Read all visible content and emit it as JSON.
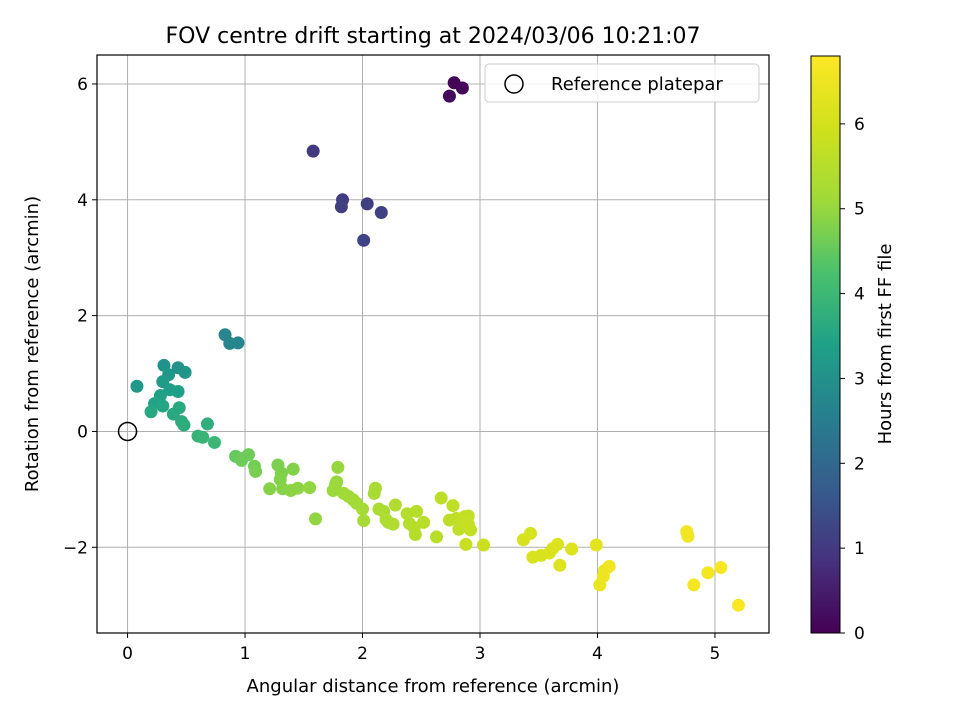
{
  "chart_data": {
    "type": "scatter",
    "title": "FOV centre drift starting at 2024/03/06 10:21:07",
    "xlabel": "Angular distance from reference (arcmin)",
    "ylabel": "Rotation from reference (arcmin)",
    "xlim": [
      -0.26,
      5.46
    ],
    "ylim": [
      -3.48,
      6.5
    ],
    "x_ticks": [
      0,
      1,
      2,
      3,
      4,
      5
    ],
    "y_ticks": [
      -2,
      0,
      2,
      4,
      6
    ],
    "grid": true,
    "legend": {
      "placement": "top-right",
      "entries": [
        "Reference platepar"
      ]
    },
    "reference_point": {
      "x": 0,
      "y": 0
    },
    "colorbar": {
      "label": "Hours from first FF file",
      "colormap": "viridis",
      "range": [
        0,
        6.8
      ],
      "ticks": [
        0,
        1,
        2,
        3,
        4,
        5,
        6
      ]
    },
    "series": [
      {
        "points": [
          {
            "x": 2.78,
            "y": 6.02,
            "c": 0.05
          },
          {
            "x": 2.85,
            "y": 5.93,
            "c": 0.1
          },
          {
            "x": 2.74,
            "y": 5.79,
            "c": 0.15
          },
          {
            "x": 1.58,
            "y": 4.84,
            "c": 1.0
          },
          {
            "x": 1.83,
            "y": 4.0,
            "c": 1.05
          },
          {
            "x": 1.82,
            "y": 3.88,
            "c": 1.1
          },
          {
            "x": 2.04,
            "y": 3.93,
            "c": 1.1
          },
          {
            "x": 2.16,
            "y": 3.78,
            "c": 1.15
          },
          {
            "x": 2.01,
            "y": 3.3,
            "c": 1.2
          },
          {
            "x": 0.83,
            "y": 1.67,
            "c": 2.7
          },
          {
            "x": 0.87,
            "y": 1.52,
            "c": 2.75
          },
          {
            "x": 0.94,
            "y": 1.53,
            "c": 2.75
          },
          {
            "x": 0.31,
            "y": 1.14,
            "c": 3.05
          },
          {
            "x": 0.43,
            "y": 1.1,
            "c": 3.05
          },
          {
            "x": 0.49,
            "y": 1.02,
            "c": 3.1
          },
          {
            "x": 0.35,
            "y": 0.98,
            "c": 3.15
          },
          {
            "x": 0.08,
            "y": 0.78,
            "c": 3.2
          },
          {
            "x": 0.3,
            "y": 0.86,
            "c": 3.25
          },
          {
            "x": 0.36,
            "y": 0.72,
            "c": 3.3
          },
          {
            "x": 0.43,
            "y": 0.69,
            "c": 3.35
          },
          {
            "x": 0.28,
            "y": 0.62,
            "c": 3.4
          },
          {
            "x": 0.23,
            "y": 0.48,
            "c": 3.45
          },
          {
            "x": 0.3,
            "y": 0.44,
            "c": 3.5
          },
          {
            "x": 0.2,
            "y": 0.34,
            "c": 3.55
          },
          {
            "x": 0.44,
            "y": 0.41,
            "c": 3.6
          },
          {
            "x": 0.39,
            "y": 0.3,
            "c": 3.6
          },
          {
            "x": 0.46,
            "y": 0.17,
            "c": 3.65
          },
          {
            "x": 0.48,
            "y": 0.11,
            "c": 3.7
          },
          {
            "x": 0.68,
            "y": 0.13,
            "c": 3.75
          },
          {
            "x": 0.6,
            "y": -0.08,
            "c": 3.85
          },
          {
            "x": 0.64,
            "y": -0.1,
            "c": 3.9
          },
          {
            "x": 0.74,
            "y": -0.19,
            "c": 3.95
          },
          {
            "x": 0.92,
            "y": -0.43,
            "c": 4.5
          },
          {
            "x": 0.97,
            "y": -0.47,
            "c": 4.55
          },
          {
            "x": 1.03,
            "y": -0.4,
            "c": 4.6
          },
          {
            "x": 0.97,
            "y": -0.5,
            "c": 4.6
          },
          {
            "x": 1.08,
            "y": -0.6,
            "c": 4.65
          },
          {
            "x": 1.09,
            "y": -0.69,
            "c": 4.7
          },
          {
            "x": 1.28,
            "y": -0.58,
            "c": 4.75
          },
          {
            "x": 1.31,
            "y": -0.72,
            "c": 4.75
          },
          {
            "x": 1.3,
            "y": -0.83,
            "c": 4.8
          },
          {
            "x": 1.41,
            "y": -0.65,
            "c": 4.8
          },
          {
            "x": 1.21,
            "y": -0.99,
            "c": 4.85
          },
          {
            "x": 1.32,
            "y": -0.99,
            "c": 4.85
          },
          {
            "x": 1.39,
            "y": -1.02,
            "c": 4.9
          },
          {
            "x": 1.45,
            "y": -0.98,
            "c": 4.9
          },
          {
            "x": 1.55,
            "y": -0.97,
            "c": 4.95
          },
          {
            "x": 1.6,
            "y": -1.51,
            "c": 4.95
          },
          {
            "x": 1.79,
            "y": -0.62,
            "c": 5.0
          },
          {
            "x": 1.78,
            "y": -0.87,
            "c": 5.0
          },
          {
            "x": 1.77,
            "y": -0.92,
            "c": 5.05
          },
          {
            "x": 1.75,
            "y": -1.02,
            "c": 5.05
          },
          {
            "x": 1.84,
            "y": -1.07,
            "c": 5.1
          },
          {
            "x": 1.88,
            "y": -1.12,
            "c": 5.1
          },
          {
            "x": 1.92,
            "y": -1.18,
            "c": 5.15
          },
          {
            "x": 1.95,
            "y": -1.24,
            "c": 5.15
          },
          {
            "x": 2.0,
            "y": -1.34,
            "c": 5.2
          },
          {
            "x": 2.01,
            "y": -1.54,
            "c": 5.2
          },
          {
            "x": 2.1,
            "y": -1.07,
            "c": 5.25
          },
          {
            "x": 2.11,
            "y": -0.98,
            "c": 5.25
          },
          {
            "x": 2.14,
            "y": -1.34,
            "c": 5.3
          },
          {
            "x": 2.18,
            "y": -1.38,
            "c": 5.3
          },
          {
            "x": 2.2,
            "y": -1.52,
            "c": 5.35
          },
          {
            "x": 2.22,
            "y": -1.57,
            "c": 5.35
          },
          {
            "x": 2.26,
            "y": -1.6,
            "c": 5.4
          },
          {
            "x": 2.28,
            "y": -1.27,
            "c": 5.4
          },
          {
            "x": 2.38,
            "y": -1.42,
            "c": 5.45
          },
          {
            "x": 2.4,
            "y": -1.59,
            "c": 5.45
          },
          {
            "x": 2.44,
            "y": -1.66,
            "c": 5.5
          },
          {
            "x": 2.45,
            "y": -1.78,
            "c": 5.5
          },
          {
            "x": 2.46,
            "y": -1.38,
            "c": 5.5
          },
          {
            "x": 2.52,
            "y": -1.57,
            "c": 5.55
          },
          {
            "x": 2.63,
            "y": -1.82,
            "c": 5.55
          },
          {
            "x": 2.67,
            "y": -1.15,
            "c": 5.6
          },
          {
            "x": 2.74,
            "y": -1.53,
            "c": 5.6
          },
          {
            "x": 2.77,
            "y": -1.28,
            "c": 5.65
          },
          {
            "x": 2.8,
            "y": -1.5,
            "c": 5.65
          },
          {
            "x": 2.82,
            "y": -1.69,
            "c": 5.65
          },
          {
            "x": 2.85,
            "y": -1.58,
            "c": 5.7
          },
          {
            "x": 2.87,
            "y": -1.47,
            "c": 5.7
          },
          {
            "x": 2.9,
            "y": -1.46,
            "c": 5.7
          },
          {
            "x": 2.9,
            "y": -1.6,
            "c": 5.75
          },
          {
            "x": 2.92,
            "y": -1.7,
            "c": 5.75
          },
          {
            "x": 2.88,
            "y": -1.95,
            "c": 5.8
          },
          {
            "x": 3.03,
            "y": -1.96,
            "c": 5.85
          },
          {
            "x": 3.37,
            "y": -1.87,
            "c": 6.05
          },
          {
            "x": 3.43,
            "y": -1.76,
            "c": 6.05
          },
          {
            "x": 3.45,
            "y": -2.17,
            "c": 6.1
          },
          {
            "x": 3.52,
            "y": -2.14,
            "c": 6.1
          },
          {
            "x": 3.59,
            "y": -2.1,
            "c": 6.15
          },
          {
            "x": 3.62,
            "y": -2.02,
            "c": 6.15
          },
          {
            "x": 3.66,
            "y": -1.95,
            "c": 6.2
          },
          {
            "x": 3.68,
            "y": -2.31,
            "c": 6.2
          },
          {
            "x": 3.78,
            "y": -2.03,
            "c": 6.2
          },
          {
            "x": 3.99,
            "y": -1.96,
            "c": 6.3
          },
          {
            "x": 4.02,
            "y": -2.65,
            "c": 6.45
          },
          {
            "x": 4.05,
            "y": -2.5,
            "c": 6.5
          },
          {
            "x": 4.06,
            "y": -2.4,
            "c": 6.5
          },
          {
            "x": 4.1,
            "y": -2.33,
            "c": 6.55
          },
          {
            "x": 4.76,
            "y": -1.73,
            "c": 6.6
          },
          {
            "x": 4.77,
            "y": -1.81,
            "c": 6.6
          },
          {
            "x": 4.82,
            "y": -2.65,
            "c": 6.65
          },
          {
            "x": 4.94,
            "y": -2.44,
            "c": 6.65
          },
          {
            "x": 5.05,
            "y": -2.35,
            "c": 6.7
          },
          {
            "x": 5.2,
            "y": -3.0,
            "c": 6.75
          }
        ]
      }
    ]
  }
}
